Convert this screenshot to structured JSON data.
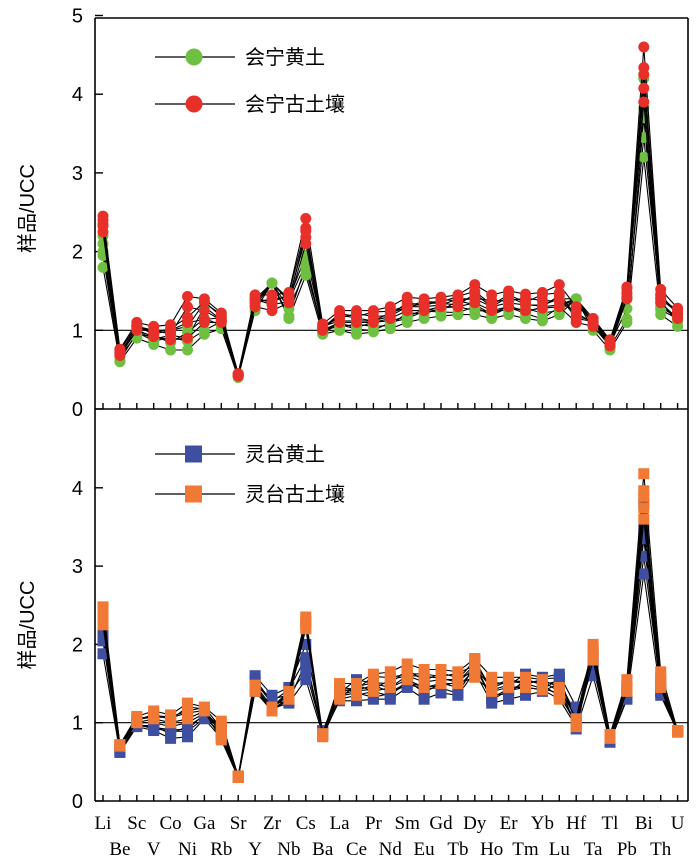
{
  "chart_data": {
    "type": "line",
    "elements": [
      "Li",
      "Be",
      "Sc",
      "V",
      "Co",
      "Ni",
      "Ga",
      "Rb",
      "Sr",
      "Y",
      "Zr",
      "Nb",
      "Cs",
      "Ba",
      "La",
      "Ce",
      "Pr",
      "Nd",
      "Sm",
      "Eu",
      "Gd",
      "Tb",
      "Dy",
      "Ho",
      "Er",
      "Tm",
      "Yb",
      "Lu",
      "Hf",
      "Ta",
      "Tl",
      "Pb",
      "Bi",
      "Th",
      "U"
    ],
    "panels": [
      {
        "id": "huining",
        "ylabel": "样品/UCC",
        "ylim": [
          0,
          5
        ],
        "yticks": [
          0,
          1,
          2,
          3,
          4,
          5
        ],
        "reference_line": 1,
        "legend_position": "top-left",
        "series": [
          {
            "name": "会宁黄土",
            "color": "#6fc040",
            "marker": "circle",
            "min": [
              1.8,
              0.6,
              0.9,
              0.82,
              0.75,
              0.75,
              0.95,
              1.02,
              0.4,
              1.25,
              1.6,
              1.15,
              1.7,
              0.95,
              1.0,
              0.95,
              0.98,
              1.02,
              1.1,
              1.15,
              1.18,
              1.2,
              1.2,
              1.15,
              1.2,
              1.15,
              1.12,
              1.2,
              1.4,
              1.0,
              0.75,
              1.1,
              3.2,
              1.2,
              1.05
            ],
            "max": [
              2.2,
              0.75,
              1.05,
              1.0,
              1.0,
              1.05,
              1.35,
              1.2,
              0.45,
              1.4,
              1.6,
              1.4,
              1.95,
              1.05,
              1.12,
              1.12,
              1.12,
              1.18,
              1.3,
              1.3,
              1.32,
              1.4,
              1.4,
              1.3,
              1.35,
              1.32,
              1.32,
              1.4,
              1.4,
              1.15,
              0.85,
              1.45,
              4.2,
              1.45,
              1.2
            ]
          },
          {
            "name": "会宁古土壤",
            "color": "#e8302a",
            "marker": "circle",
            "min": [
              2.25,
              0.68,
              1.0,
              0.92,
              0.88,
              0.9,
              1.1,
              1.1,
              0.42,
              1.3,
              1.25,
              1.35,
              2.1,
              1.0,
              1.1,
              1.1,
              1.1,
              1.15,
              1.25,
              1.25,
              1.3,
              1.3,
              1.35,
              1.25,
              1.3,
              1.25,
              1.28,
              1.3,
              1.1,
              1.05,
              0.8,
              1.4,
              3.9,
              1.35,
              1.15
            ],
            "max": [
              2.45,
              0.76,
              1.1,
              1.05,
              1.07,
              1.43,
              1.4,
              1.22,
              0.45,
              1.45,
              1.45,
              1.48,
              2.42,
              1.08,
              1.25,
              1.25,
              1.25,
              1.3,
              1.42,
              1.4,
              1.42,
              1.45,
              1.58,
              1.45,
              1.5,
              1.46,
              1.48,
              1.58,
              1.3,
              1.15,
              0.88,
              1.55,
              4.6,
              1.52,
              1.28
            ]
          }
        ]
      },
      {
        "id": "lingtai",
        "ylabel": "样品/UCC",
        "ylim": [
          0,
          5
        ],
        "yticks": [
          0,
          1,
          2,
          3,
          4
        ],
        "reference_line": 1,
        "legend_position": "top-left",
        "series": [
          {
            "name": "灵台黄土",
            "color": "#3e4ea0",
            "marker": "square",
            "min": [
              1.88,
              0.62,
              0.95,
              0.9,
              0.8,
              0.82,
              1.05,
              0.8,
              0.3,
              1.4,
              1.18,
              1.25,
              1.55,
              0.85,
              1.28,
              1.28,
              1.3,
              1.3,
              1.45,
              1.3,
              1.38,
              1.35,
              1.65,
              1.25,
              1.3,
              1.35,
              1.4,
              1.5,
              0.92,
              1.6,
              0.75,
              1.3,
              2.9,
              1.35,
              0.88
            ],
            "max": [
              2.32,
              0.7,
              1.0,
              1.0,
              0.95,
              1.0,
              1.12,
              0.95,
              0.32,
              1.6,
              1.35,
              1.45,
              2.0,
              0.9,
              1.38,
              1.55,
              1.5,
              1.45,
              1.6,
              1.52,
              1.55,
              1.55,
              1.8,
              1.42,
              1.48,
              1.62,
              1.58,
              1.62,
              1.2,
              1.9,
              0.8,
              1.45,
              3.8,
              1.5,
              0.9
            ]
          },
          {
            "name": "灵台古土壤",
            "color": "#f07a35",
            "marker": "square",
            "min": [
              2.25,
              0.7,
              1.0,
              1.05,
              1.0,
              1.05,
              1.15,
              0.78,
              0.3,
              1.4,
              1.15,
              1.3,
              2.2,
              0.82,
              1.3,
              1.35,
              1.4,
              1.45,
              1.55,
              1.45,
              1.5,
              1.5,
              1.58,
              1.4,
              1.45,
              1.45,
              1.42,
              1.3,
              0.95,
              1.8,
              0.8,
              1.4,
              3.6,
              1.45,
              0.88
            ],
            "max": [
              2.48,
              0.72,
              1.08,
              1.15,
              1.1,
              1.25,
              1.2,
              1.02,
              0.32,
              1.48,
              1.2,
              1.4,
              2.35,
              0.86,
              1.5,
              1.5,
              1.62,
              1.65,
              1.75,
              1.68,
              1.68,
              1.65,
              1.82,
              1.58,
              1.58,
              1.58,
              1.55,
              1.45,
              1.05,
              2.0,
              0.85,
              1.55,
              4.18,
              1.65,
              0.9
            ]
          }
        ]
      }
    ]
  }
}
